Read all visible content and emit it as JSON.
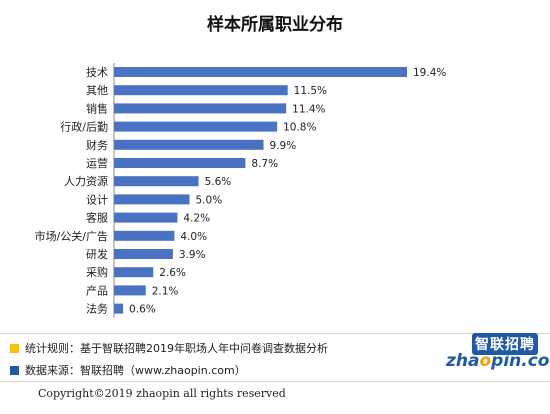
{
  "chart_data": {
    "type": "bar",
    "orientation": "horizontal",
    "title": "样本所属职业分布",
    "categories": [
      "技术",
      "其他",
      "销售",
      "行政/后勤",
      "财务",
      "运营",
      "人力资源",
      "设计",
      "客服",
      "市场/公关/广告",
      "研发",
      "采购",
      "产品",
      "法务"
    ],
    "values": [
      19.4,
      11.5,
      11.4,
      10.8,
      9.9,
      8.7,
      5.6,
      5.0,
      4.2,
      4.0,
      3.9,
      2.6,
      2.1,
      0.6
    ],
    "value_labels": [
      "19.4%",
      "11.5%",
      "11.4%",
      "10.8%",
      "9.9%",
      "8.7%",
      "5.6%",
      "5.0%",
      "4.2%",
      "4.0%",
      "3.9%",
      "2.6%",
      "2.1%",
      "0.6%"
    ],
    "xlim": [
      0,
      19.4
    ],
    "bar_color": "#4a72c4",
    "grid": false
  },
  "footer": {
    "rule_note": "统计规则：基于智联招聘2019年职场人年中问卷调查数据分析",
    "source_note": "数据来源：智联招聘（www.zhaopin.com）",
    "rule_color": "#f7c600",
    "source_color": "#1e5aa8",
    "copyright": "Copyright©2019 zhaopin all rights reserved"
  },
  "logo": {
    "cn": "智联招聘",
    "en_prefix": "zha",
    "en_o": "o",
    "en_suffix": "pin.com"
  }
}
